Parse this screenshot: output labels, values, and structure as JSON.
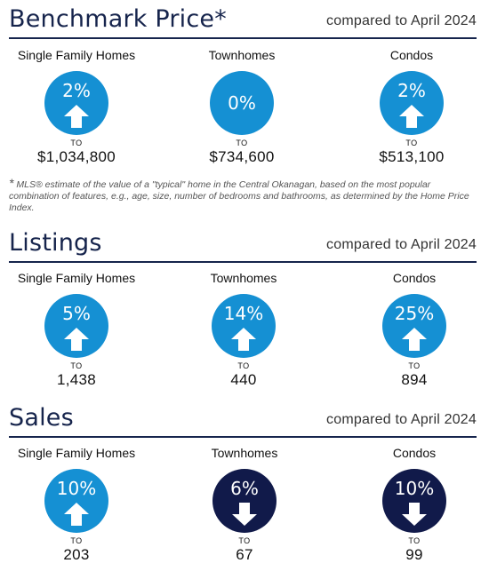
{
  "colors": {
    "up": "#1590d3",
    "down": "#111a4a",
    "header": "#16244c"
  },
  "benchmark": {
    "title": "Benchmark Price*",
    "subtitle": "compared to April 2024",
    "items": [
      {
        "label": "Single Family Homes",
        "pct": "2%",
        "direction": "up",
        "to": "TO",
        "value": "$1,034,800"
      },
      {
        "label": "Townhomes",
        "pct": "0%",
        "direction": "flat",
        "to": "TO",
        "value": "$734,600"
      },
      {
        "label": "Condos",
        "pct": "2%",
        "direction": "up",
        "to": "TO",
        "value": "$513,100"
      }
    ],
    "footnote_star": "*",
    "footnote": "MLS® estimate of the value of a \"typical\" home in the Central Okanagan, based on the most popular combination of features, e.g., age, size, number of bedrooms and bathrooms, as determined by the Home Price Index."
  },
  "listings": {
    "title": "Listings",
    "subtitle": "compared to April 2024",
    "items": [
      {
        "label": "Single Family Homes",
        "pct": "5%",
        "direction": "up",
        "to": "TO",
        "value": "1,438"
      },
      {
        "label": "Townhomes",
        "pct": "14%",
        "direction": "up",
        "to": "TO",
        "value": "440"
      },
      {
        "label": "Condos",
        "pct": "25%",
        "direction": "up",
        "to": "TO",
        "value": "894"
      }
    ]
  },
  "sales": {
    "title": "Sales",
    "subtitle": "compared to April 2024",
    "items": [
      {
        "label": "Single Family Homes",
        "pct": "10%",
        "direction": "up",
        "to": "TO",
        "value": "203"
      },
      {
        "label": "Townhomes",
        "pct": "6%",
        "direction": "down",
        "to": "TO",
        "value": "67"
      },
      {
        "label": "Condos",
        "pct": "10%",
        "direction": "down",
        "to": "TO",
        "value": "99"
      }
    ]
  }
}
